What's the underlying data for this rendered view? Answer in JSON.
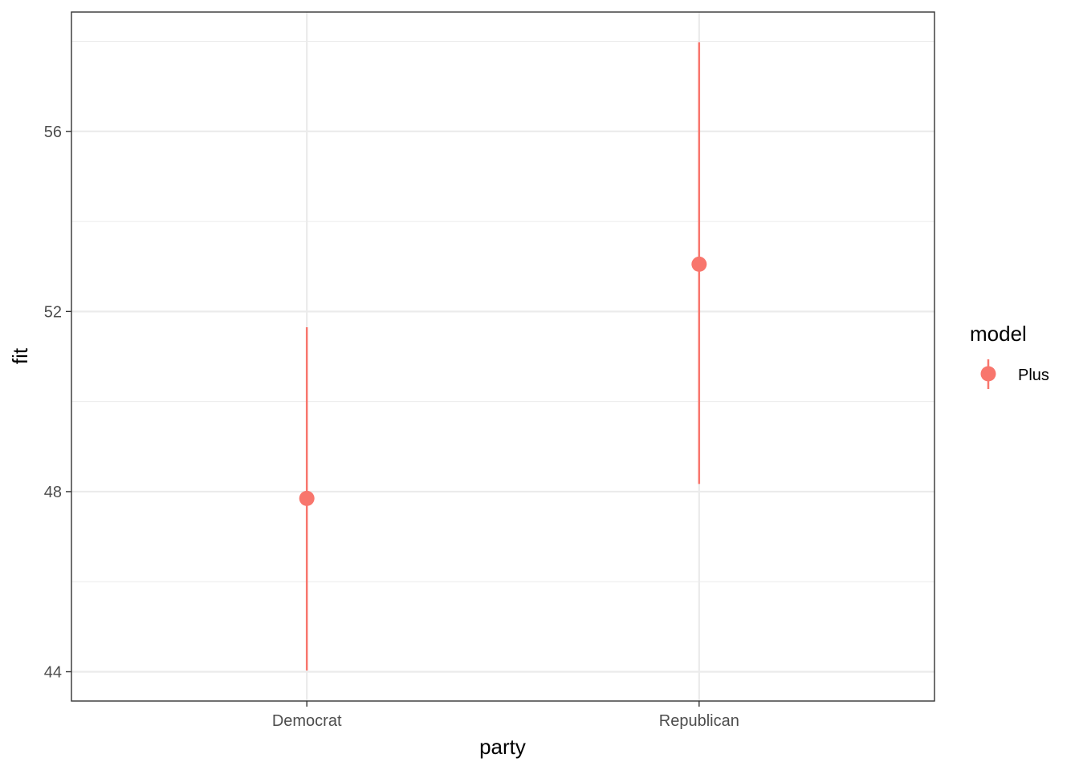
{
  "chart_data": {
    "type": "scatter",
    "subtype": "pointrange",
    "xlabel": "party",
    "ylabel": "fit",
    "categories": [
      "Democrat",
      "Republican"
    ],
    "ylim": [
      43.35,
      58.65
    ],
    "yticks": [
      44,
      48,
      52,
      56
    ],
    "ytick_labels": [
      "44",
      "48",
      "52",
      "56"
    ],
    "grid": true,
    "legend": {
      "title": "model",
      "position": "right"
    },
    "series": [
      {
        "name": "Plus",
        "color": "#F8766D",
        "points": [
          {
            "x": "Democrat",
            "y": 47.85,
            "lower": 44.03,
            "upper": 51.65
          },
          {
            "x": "Republican",
            "y": 53.05,
            "lower": 48.17,
            "upper": 57.98
          }
        ]
      }
    ]
  }
}
